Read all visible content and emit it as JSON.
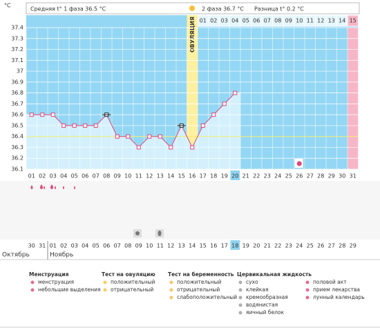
{
  "chart_data": {
    "type": "line",
    "unit": "°C",
    "header": {
      "phase1": "Средняя t° 1 фаза 36.5 °C",
      "phase2": "2 фаза 36.7 °C",
      "diff": "Разница t° 0.2 °C"
    },
    "ovulation_label": "ОВУЛЯЦИЯ",
    "categories": [
      "01",
      "02",
      "03",
      "04",
      "05",
      "06",
      "07",
      "08",
      "09",
      "10",
      "11",
      "12",
      "13",
      "14",
      "15",
      "16",
      "17",
      "18",
      "19",
      "20",
      "21",
      "22",
      "23",
      "24",
      "25",
      "26",
      "27",
      "28",
      "29",
      "30",
      "31"
    ],
    "phase2_days": [
      "01",
      "02",
      "03",
      "04",
      "05",
      "06",
      "07",
      "08",
      "09",
      "10",
      "11",
      "12",
      "13",
      "14",
      "15"
    ],
    "values": [
      36.6,
      36.6,
      36.6,
      36.5,
      36.5,
      36.5,
      36.5,
      36.6,
      36.4,
      36.4,
      36.3,
      36.4,
      36.4,
      36.3,
      36.5,
      36.3,
      36.5,
      36.6,
      36.7,
      36.8,
      null,
      null,
      null,
      null,
      null,
      null,
      null,
      null,
      null,
      null,
      null
    ],
    "marker_colors": [
      "#e0457a",
      "#e0457a",
      "#e0457a",
      "#e0457a",
      "#e0457a",
      "#e0457a",
      "#e0457a",
      "#222222",
      "#e0457a",
      "#e0457a",
      "#e0457a",
      "#e0457a",
      "#e0457a",
      "#e0457a",
      "#222222",
      "#e0457a",
      "#e0457a",
      "#e0457a",
      "#e0457a",
      "#e0457a",
      null,
      null,
      null,
      null,
      null,
      null,
      null,
      null,
      null,
      null,
      null
    ],
    "color": "#e0457a",
    "coverline": 36.4,
    "ylim": [
      36.1,
      37.4
    ],
    "yticks": [
      36.1,
      36.2,
      36.3,
      36.4,
      36.5,
      36.6,
      36.7,
      36.8,
      36.9,
      37,
      37.1,
      37.2,
      37.3,
      37.4
    ],
    "grid": true,
    "calendar": {
      "dates": [
        "30",
        "31",
        "01",
        "02",
        "03",
        "04",
        "05",
        "06",
        "07",
        "08",
        "09",
        "10",
        "11",
        "12",
        "13",
        "14",
        "15",
        "16",
        "17",
        "18",
        "19",
        "20",
        "21",
        "22",
        "23",
        "24",
        "25",
        "26",
        "27",
        "28",
        "29"
      ],
      "months": [
        "Октябрь",
        "Ноябрь"
      ]
    },
    "legend": [
      {
        "title": "Менструация",
        "items": [
          "менструация",
          "небольшие выделения"
        ]
      },
      {
        "title": "Тест на овуляцию",
        "items": [
          "положительный",
          "отрицательный"
        ]
      },
      {
        "title": "Тест на беременность",
        "items": [
          "положительный",
          "отрицательный",
          "слабоположительный"
        ]
      },
      {
        "title": "Цервикальная жидкость",
        "items": [
          "сухо",
          "клейкая",
          "кремообразная",
          "водянистая",
          "яичный белок"
        ]
      },
      {
        "title": "",
        "items": [
          "половой акт",
          "прием лекарства",
          "лунный календарь"
        ]
      }
    ]
  }
}
